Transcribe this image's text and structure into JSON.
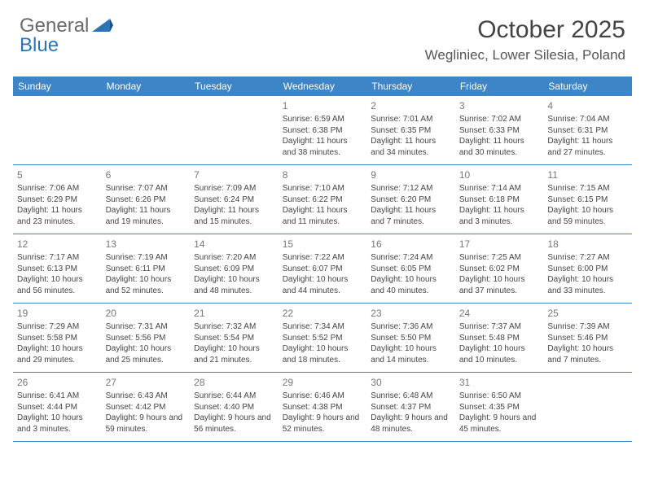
{
  "brand": {
    "word1": "General",
    "word2": "Blue"
  },
  "title": "October 2025",
  "location": "Wegliniec, Lower Silesia, Poland",
  "colors": {
    "header_bg": "#3d85c6",
    "header_text": "#ffffff",
    "rule": "#3d85c6",
    "brand_gray": "#6a6a6a",
    "brand_blue": "#2e74b5",
    "cell_text": "#444444",
    "daynum": "#777777"
  },
  "day_labels": [
    "Sunday",
    "Monday",
    "Tuesday",
    "Wednesday",
    "Thursday",
    "Friday",
    "Saturday"
  ],
  "weeks": [
    [
      {
        "empty": true
      },
      {
        "empty": true
      },
      {
        "empty": true
      },
      {
        "day": "1",
        "sunrise": "Sunrise: 6:59 AM",
        "sunset": "Sunset: 6:38 PM",
        "daylight": "Daylight: 11 hours and 38 minutes."
      },
      {
        "day": "2",
        "sunrise": "Sunrise: 7:01 AM",
        "sunset": "Sunset: 6:35 PM",
        "daylight": "Daylight: 11 hours and 34 minutes."
      },
      {
        "day": "3",
        "sunrise": "Sunrise: 7:02 AM",
        "sunset": "Sunset: 6:33 PM",
        "daylight": "Daylight: 11 hours and 30 minutes."
      },
      {
        "day": "4",
        "sunrise": "Sunrise: 7:04 AM",
        "sunset": "Sunset: 6:31 PM",
        "daylight": "Daylight: 11 hours and 27 minutes."
      }
    ],
    [
      {
        "day": "5",
        "sunrise": "Sunrise: 7:06 AM",
        "sunset": "Sunset: 6:29 PM",
        "daylight": "Daylight: 11 hours and 23 minutes."
      },
      {
        "day": "6",
        "sunrise": "Sunrise: 7:07 AM",
        "sunset": "Sunset: 6:26 PM",
        "daylight": "Daylight: 11 hours and 19 minutes."
      },
      {
        "day": "7",
        "sunrise": "Sunrise: 7:09 AM",
        "sunset": "Sunset: 6:24 PM",
        "daylight": "Daylight: 11 hours and 15 minutes."
      },
      {
        "day": "8",
        "sunrise": "Sunrise: 7:10 AM",
        "sunset": "Sunset: 6:22 PM",
        "daylight": "Daylight: 11 hours and 11 minutes."
      },
      {
        "day": "9",
        "sunrise": "Sunrise: 7:12 AM",
        "sunset": "Sunset: 6:20 PM",
        "daylight": "Daylight: 11 hours and 7 minutes."
      },
      {
        "day": "10",
        "sunrise": "Sunrise: 7:14 AM",
        "sunset": "Sunset: 6:18 PM",
        "daylight": "Daylight: 11 hours and 3 minutes."
      },
      {
        "day": "11",
        "sunrise": "Sunrise: 7:15 AM",
        "sunset": "Sunset: 6:15 PM",
        "daylight": "Daylight: 10 hours and 59 minutes."
      }
    ],
    [
      {
        "day": "12",
        "sunrise": "Sunrise: 7:17 AM",
        "sunset": "Sunset: 6:13 PM",
        "daylight": "Daylight: 10 hours and 56 minutes."
      },
      {
        "day": "13",
        "sunrise": "Sunrise: 7:19 AM",
        "sunset": "Sunset: 6:11 PM",
        "daylight": "Daylight: 10 hours and 52 minutes."
      },
      {
        "day": "14",
        "sunrise": "Sunrise: 7:20 AM",
        "sunset": "Sunset: 6:09 PM",
        "daylight": "Daylight: 10 hours and 48 minutes."
      },
      {
        "day": "15",
        "sunrise": "Sunrise: 7:22 AM",
        "sunset": "Sunset: 6:07 PM",
        "daylight": "Daylight: 10 hours and 44 minutes."
      },
      {
        "day": "16",
        "sunrise": "Sunrise: 7:24 AM",
        "sunset": "Sunset: 6:05 PM",
        "daylight": "Daylight: 10 hours and 40 minutes."
      },
      {
        "day": "17",
        "sunrise": "Sunrise: 7:25 AM",
        "sunset": "Sunset: 6:02 PM",
        "daylight": "Daylight: 10 hours and 37 minutes."
      },
      {
        "day": "18",
        "sunrise": "Sunrise: 7:27 AM",
        "sunset": "Sunset: 6:00 PM",
        "daylight": "Daylight: 10 hours and 33 minutes."
      }
    ],
    [
      {
        "day": "19",
        "sunrise": "Sunrise: 7:29 AM",
        "sunset": "Sunset: 5:58 PM",
        "daylight": "Daylight: 10 hours and 29 minutes."
      },
      {
        "day": "20",
        "sunrise": "Sunrise: 7:31 AM",
        "sunset": "Sunset: 5:56 PM",
        "daylight": "Daylight: 10 hours and 25 minutes."
      },
      {
        "day": "21",
        "sunrise": "Sunrise: 7:32 AM",
        "sunset": "Sunset: 5:54 PM",
        "daylight": "Daylight: 10 hours and 21 minutes."
      },
      {
        "day": "22",
        "sunrise": "Sunrise: 7:34 AM",
        "sunset": "Sunset: 5:52 PM",
        "daylight": "Daylight: 10 hours and 18 minutes."
      },
      {
        "day": "23",
        "sunrise": "Sunrise: 7:36 AM",
        "sunset": "Sunset: 5:50 PM",
        "daylight": "Daylight: 10 hours and 14 minutes."
      },
      {
        "day": "24",
        "sunrise": "Sunrise: 7:37 AM",
        "sunset": "Sunset: 5:48 PM",
        "daylight": "Daylight: 10 hours and 10 minutes."
      },
      {
        "day": "25",
        "sunrise": "Sunrise: 7:39 AM",
        "sunset": "Sunset: 5:46 PM",
        "daylight": "Daylight: 10 hours and 7 minutes."
      }
    ],
    [
      {
        "day": "26",
        "sunrise": "Sunrise: 6:41 AM",
        "sunset": "Sunset: 4:44 PM",
        "daylight": "Daylight: 10 hours and 3 minutes."
      },
      {
        "day": "27",
        "sunrise": "Sunrise: 6:43 AM",
        "sunset": "Sunset: 4:42 PM",
        "daylight": "Daylight: 9 hours and 59 minutes."
      },
      {
        "day": "28",
        "sunrise": "Sunrise: 6:44 AM",
        "sunset": "Sunset: 4:40 PM",
        "daylight": "Daylight: 9 hours and 56 minutes."
      },
      {
        "day": "29",
        "sunrise": "Sunrise: 6:46 AM",
        "sunset": "Sunset: 4:38 PM",
        "daylight": "Daylight: 9 hours and 52 minutes."
      },
      {
        "day": "30",
        "sunrise": "Sunrise: 6:48 AM",
        "sunset": "Sunset: 4:37 PM",
        "daylight": "Daylight: 9 hours and 48 minutes."
      },
      {
        "day": "31",
        "sunrise": "Sunrise: 6:50 AM",
        "sunset": "Sunset: 4:35 PM",
        "daylight": "Daylight: 9 hours and 45 minutes."
      },
      {
        "empty": true
      }
    ]
  ]
}
